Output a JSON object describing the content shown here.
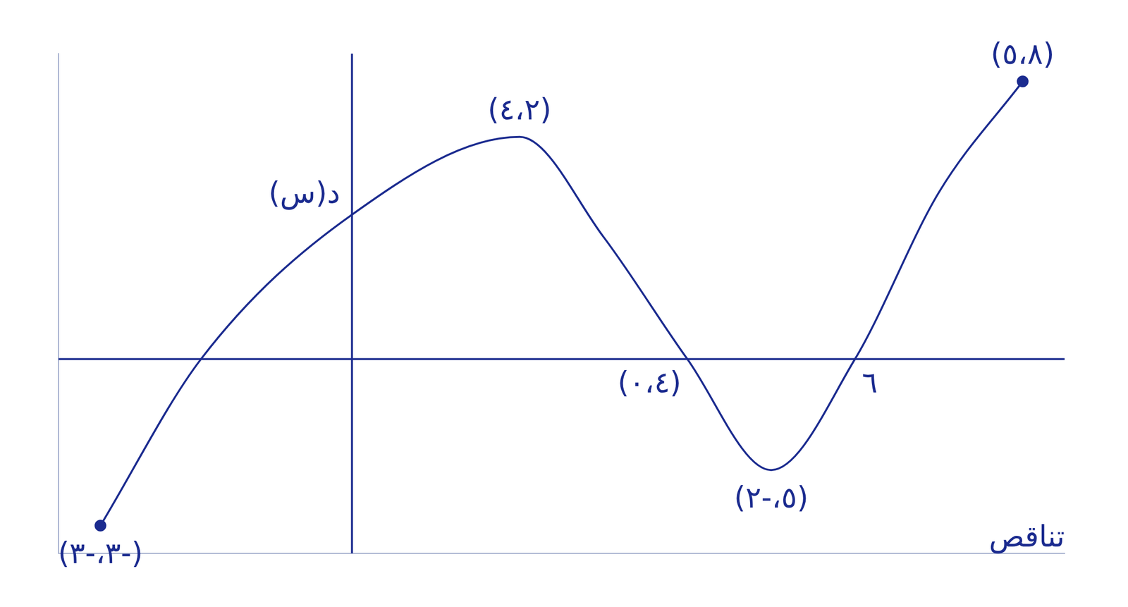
{
  "chart_data": {
    "type": "line",
    "x": [
      -3,
      -1.8,
      0,
      2,
      3,
      4,
      5,
      6,
      7,
      8
    ],
    "values": [
      -3,
      0,
      2.6,
      4,
      2.2,
      0,
      -2,
      0,
      3,
      5
    ],
    "color": "#1b2b8f",
    "xlim": [
      -3.5,
      8.5
    ],
    "ylim": [
      -3.5,
      5.5
    ],
    "grid": false,
    "tick_labels": false,
    "annotations": [
      {
        "text": "(٤،٢)",
        "x": 2,
        "y": 4
      },
      {
        "text": "(٥،٨)",
        "x": 8,
        "y": 5
      },
      {
        "text": "د(س)",
        "x": 0,
        "y": 2.6
      },
      {
        "text": "(٠،٤)",
        "x": 4,
        "y": 0
      },
      {
        "text": "٦",
        "x": 6,
        "y": 0
      },
      {
        "text": "(٢-،٥)",
        "x": 5,
        "y": -2
      },
      {
        "text": "(٣-،٣-)",
        "x": -3,
        "y": -3
      },
      {
        "text": "تناقص"
      }
    ]
  }
}
